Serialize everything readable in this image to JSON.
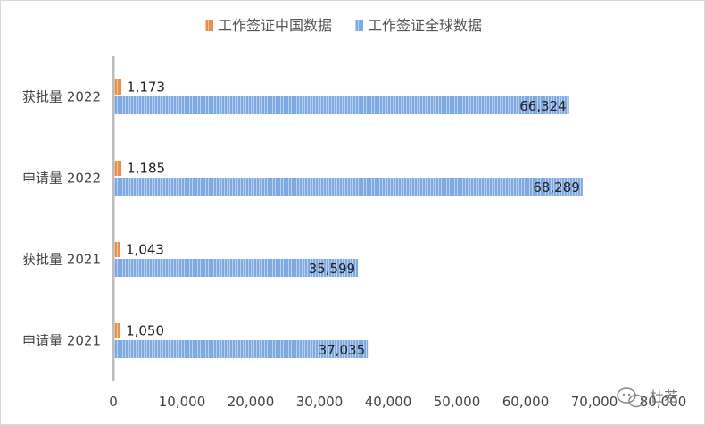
{
  "chart_data": {
    "type": "bar",
    "orientation": "horizontal",
    "categories": [
      "申请量 2021",
      "获批量 2021",
      "申请量 2022",
      "获批量 2022"
    ],
    "series": [
      {
        "name": "工作签证中国数据",
        "values": [
          1050,
          1043,
          1185,
          1173
        ],
        "labels": [
          "1,050",
          "1,043",
          "1,185",
          "1,173"
        ],
        "color": "#ed8f4c"
      },
      {
        "name": "工作签证全球数据",
        "values": [
          37035,
          35599,
          68289,
          66324
        ],
        "labels": [
          "37,035",
          "35,599",
          "68,289",
          "66,324"
        ],
        "color": "#7ea9e1"
      }
    ],
    "xlim": [
      0,
      80000
    ],
    "x_ticks": [
      0,
      10000,
      20000,
      30000,
      40000,
      50000,
      60000,
      70000,
      80000
    ],
    "x_tick_labels": [
      "0",
      "10,000",
      "20,000",
      "30,000",
      "40,000",
      "50,000",
      "60,000",
      "70,000",
      "80,000"
    ],
    "legend_position": "top",
    "grid": false
  },
  "watermark": {
    "text": "杜若",
    "icon": "wechat-icon"
  }
}
